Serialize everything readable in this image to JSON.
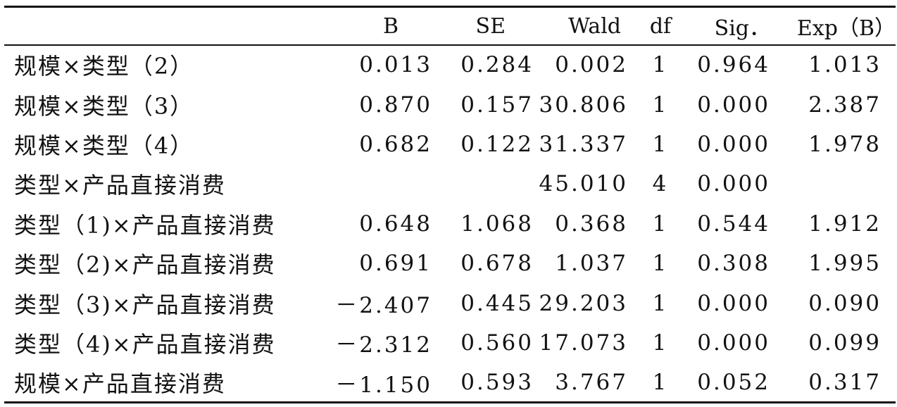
{
  "table": {
    "headers": [
      "",
      "B",
      "SE",
      "Wald",
      "df",
      "Sig．",
      "Exp（B）"
    ],
    "rows": [
      {
        "label": "规模×类型（2）",
        "b": "0.013",
        "se": "0.284",
        "wald": "0.002",
        "df": "1",
        "sig": "0.964",
        "exp": "1.013"
      },
      {
        "label": "规模×类型（3）",
        "b": "0.870",
        "se": "0.157",
        "wald": "30.806",
        "df": "1",
        "sig": "0.000",
        "exp": "2.387"
      },
      {
        "label": "规模×类型（4）",
        "b": "0.682",
        "se": "0.122",
        "wald": "31.337",
        "df": "1",
        "sig": "0.000",
        "exp": "1.978"
      },
      {
        "label": "类型×产品直接消费",
        "b": "",
        "se": "",
        "wald": "45.010",
        "df": "4",
        "sig": "0.000",
        "exp": ""
      },
      {
        "label": "类型（1)×产品直接消费",
        "b": "0.648",
        "se": "1.068",
        "wald": "0.368",
        "df": "1",
        "sig": "0.544",
        "exp": "1.912"
      },
      {
        "label": "类型（2)×产品直接消费",
        "b": "0.691",
        "se": "0.678",
        "wald": "1.037",
        "df": "1",
        "sig": "0.308",
        "exp": "1.995"
      },
      {
        "label": "类型（3)×产品直接消费",
        "b": "－2.407",
        "se": "0.445",
        "wald": "29.203",
        "df": "1",
        "sig": "0.000",
        "exp": "0.090"
      },
      {
        "label": "类型（4)×产品直接消费",
        "b": "－2.312",
        "se": "0.560",
        "wald": "17.073",
        "df": "1",
        "sig": "0.000",
        "exp": "0.099"
      },
      {
        "label": "规模×产品直接消费",
        "b": "－1.150",
        "se": "0.593",
        "wald": "3.767",
        "df": "1",
        "sig": "0.052",
        "exp": "0.317"
      }
    ]
  }
}
